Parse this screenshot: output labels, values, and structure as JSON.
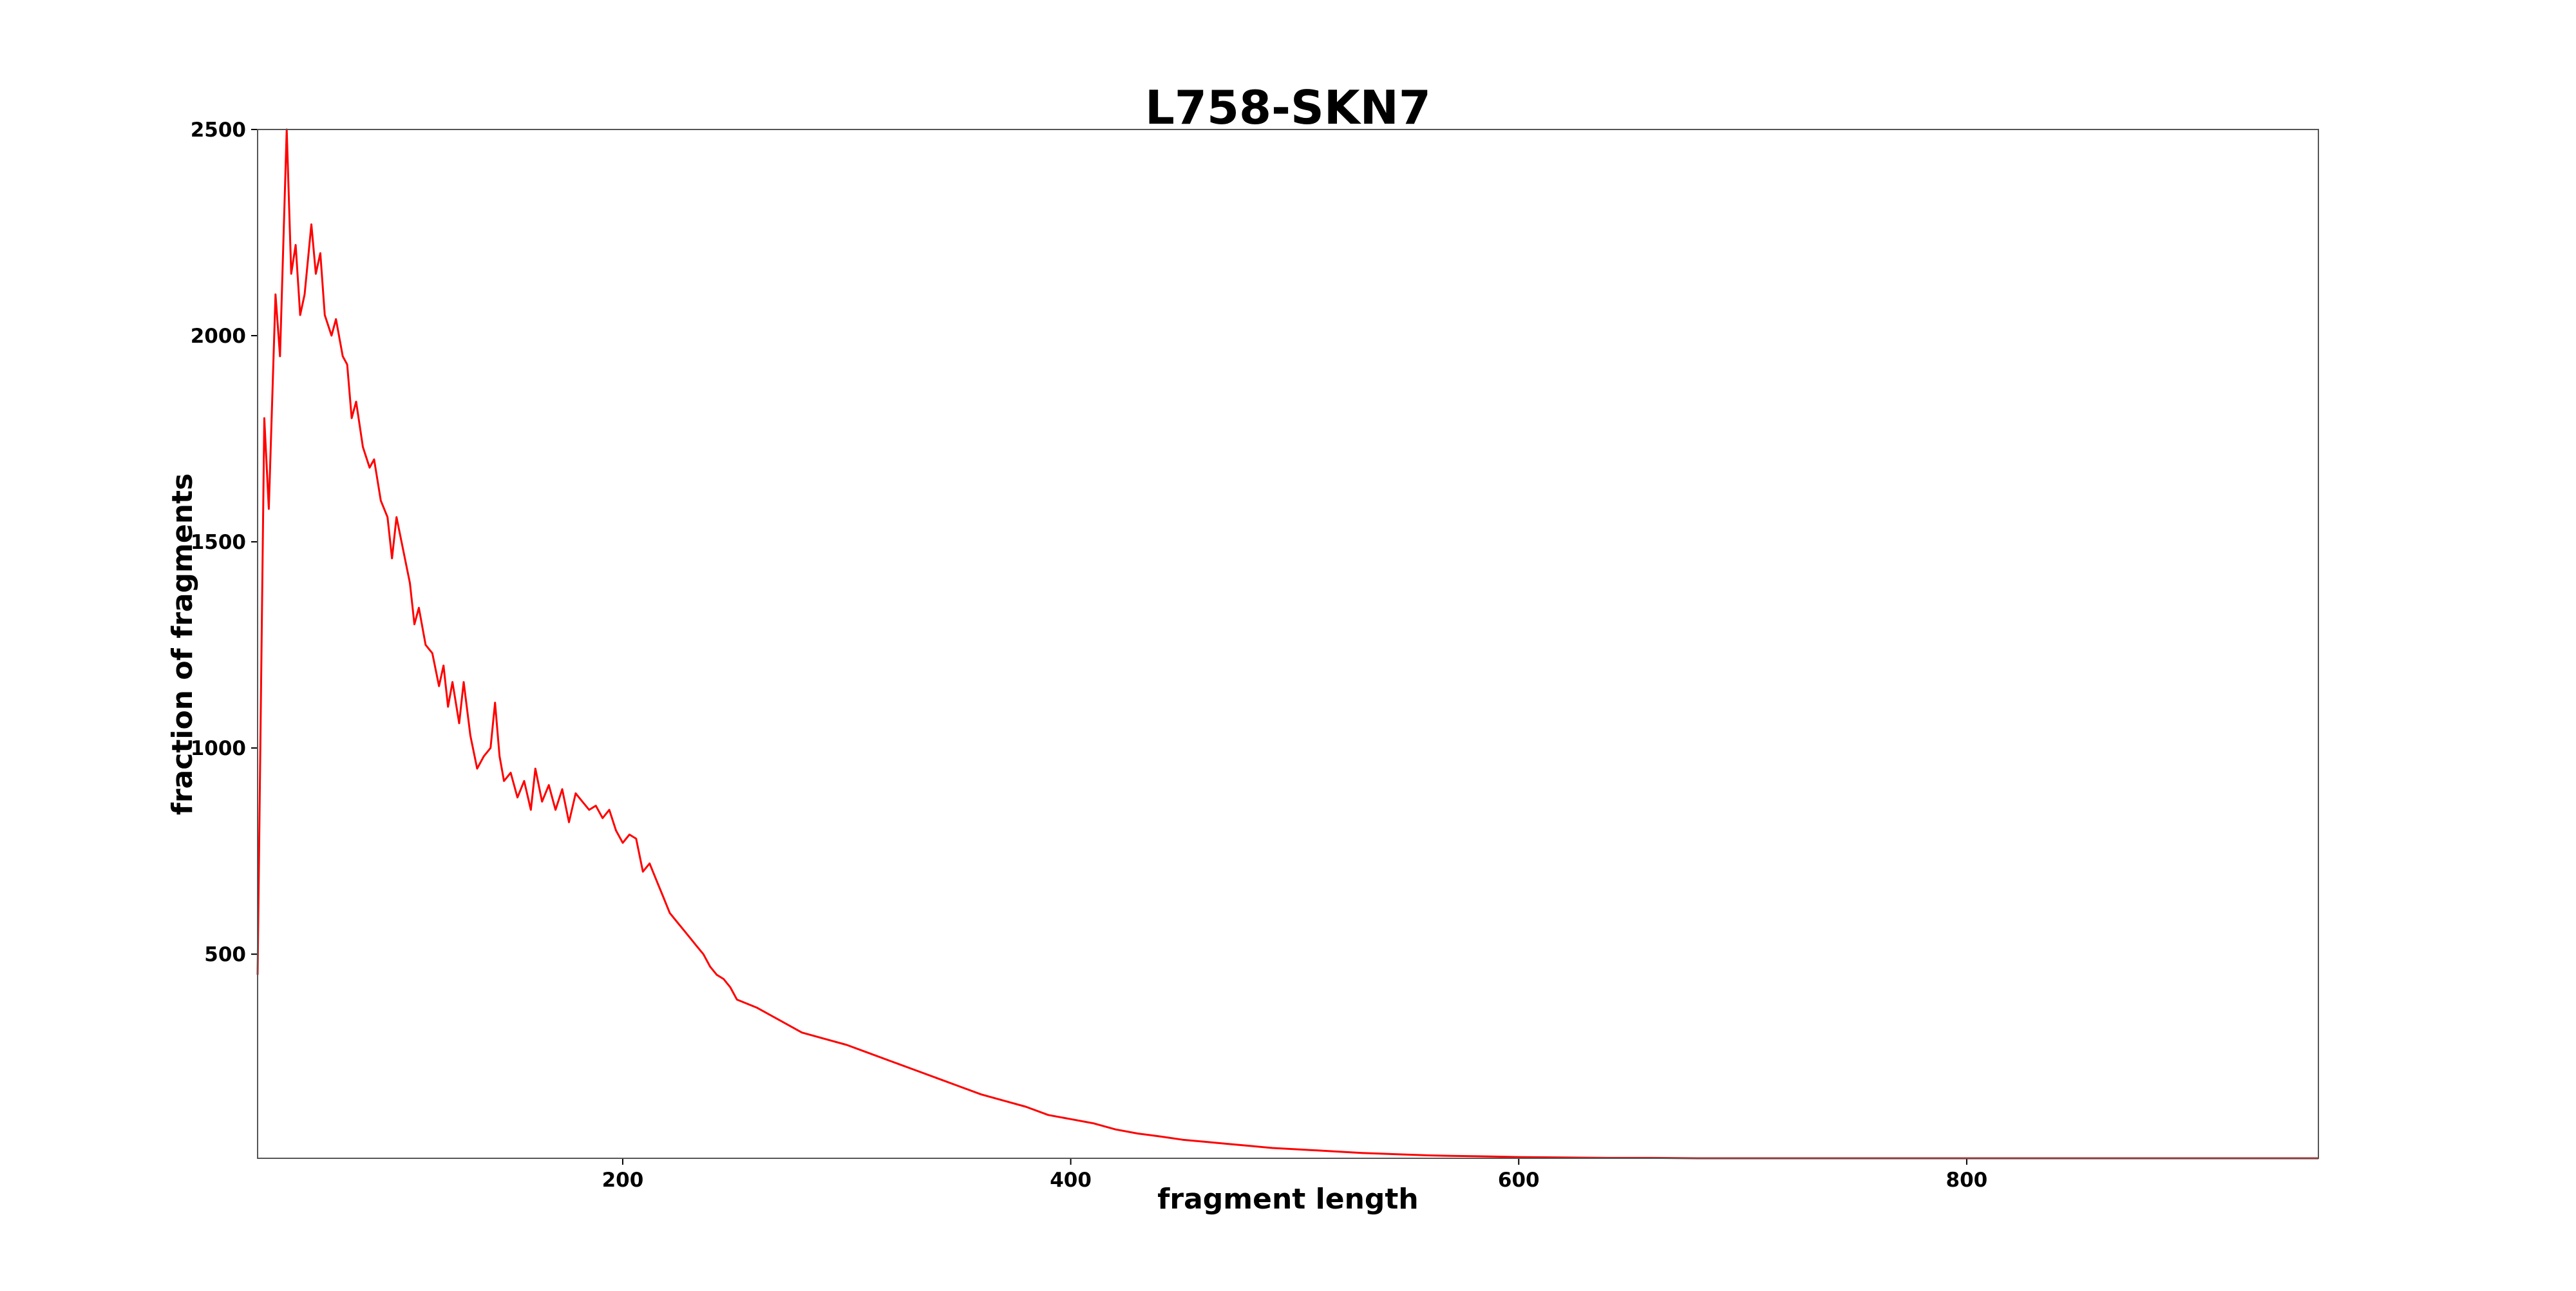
{
  "chart_data": {
    "type": "line",
    "title": "L758-SKN7",
    "x_label": "fragment length",
    "y_label": "fraction of fragments",
    "xlim": [
      37,
      957
    ],
    "ylim": [
      5,
      2500
    ],
    "xticks": [
      200,
      400,
      600,
      800
    ],
    "yticks": [
      500,
      1000,
      1500,
      2000,
      2500
    ],
    "series": [
      {
        "color": "#ff0000",
        "x": [
          37,
          40,
          42,
          45,
          47,
          50,
          52,
          54,
          56,
          58,
          61,
          63,
          65,
          67,
          70,
          72,
          75,
          77,
          79,
          81,
          84,
          87,
          89,
          92,
          95,
          97,
          99,
          102,
          105,
          107,
          109,
          112,
          115,
          118,
          120,
          122,
          124,
          127,
          129,
          132,
          135,
          138,
          141,
          143,
          145,
          147,
          150,
          153,
          156,
          159,
          161,
          164,
          167,
          170,
          173,
          176,
          179,
          182,
          185,
          188,
          191,
          194,
          197,
          200,
          203,
          206,
          209,
          212,
          215,
          218,
          221,
          224,
          227,
          230,
          233,
          236,
          239,
          242,
          245,
          248,
          251,
          260,
          270,
          280,
          290,
          300,
          310,
          320,
          330,
          340,
          350,
          360,
          370,
          380,
          390,
          400,
          410,
          420,
          430,
          440,
          450,
          460,
          470,
          480,
          490,
          500,
          510,
          520,
          530,
          540,
          550,
          560,
          570,
          580,
          590,
          600,
          620,
          640,
          660,
          680,
          700,
          750,
          800,
          850,
          900,
          957
        ],
        "values": [
          450,
          1800,
          1580,
          2100,
          1950,
          2500,
          2150,
          2220,
          2050,
          2100,
          2270,
          2150,
          2200,
          2050,
          2000,
          2040,
          1950,
          1930,
          1800,
          1840,
          1730,
          1680,
          1700,
          1600,
          1560,
          1460,
          1560,
          1480,
          1400,
          1300,
          1340,
          1250,
          1230,
          1150,
          1200,
          1100,
          1160,
          1060,
          1160,
          1030,
          950,
          980,
          1000,
          1110,
          980,
          920,
          940,
          880,
          920,
          850,
          950,
          870,
          910,
          850,
          900,
          820,
          890,
          870,
          850,
          860,
          830,
          850,
          800,
          770,
          790,
          780,
          700,
          720,
          680,
          640,
          600,
          580,
          560,
          540,
          520,
          500,
          470,
          450,
          440,
          420,
          390,
          370,
          340,
          310,
          295,
          280,
          260,
          240,
          220,
          200,
          180,
          160,
          145,
          130,
          110,
          100,
          90,
          75,
          65,
          58,
          50,
          45,
          40,
          35,
          30,
          27,
          24,
          21,
          18,
          16,
          14,
          12,
          11,
          10,
          9,
          8,
          7,
          6,
          6,
          5,
          5,
          5,
          5,
          5,
          5,
          5
        ]
      }
    ]
  }
}
